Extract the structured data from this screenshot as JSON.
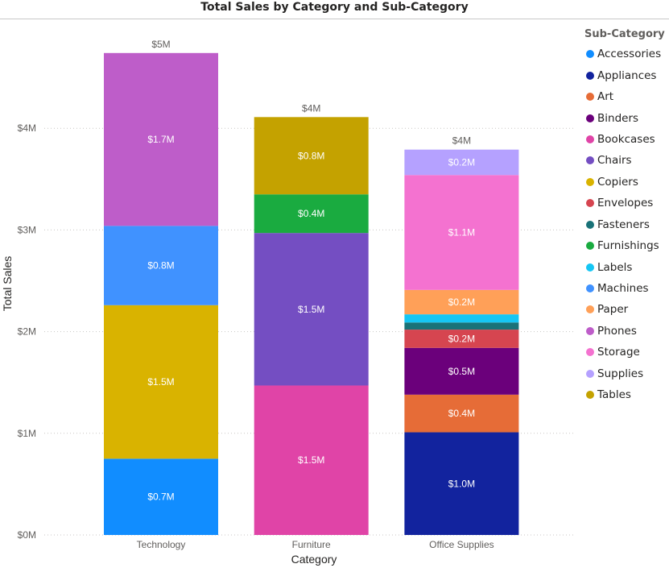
{
  "title": "Total Sales by Category and Sub-Category",
  "legend": {
    "title": "Sub-Category",
    "items": [
      {
        "label": "Accessories",
        "color": "#118DFF"
      },
      {
        "label": "Appliances",
        "color": "#12239E"
      },
      {
        "label": "Art",
        "color": "#E66C37"
      },
      {
        "label": "Binders",
        "color": "#6B007B"
      },
      {
        "label": "Bookcases",
        "color": "#E044A7"
      },
      {
        "label": "Chairs",
        "color": "#744EC2"
      },
      {
        "label": "Copiers",
        "color": "#D9B300"
      },
      {
        "label": "Envelopes",
        "color": "#D64550"
      },
      {
        "label": "Fasteners",
        "color": "#197278"
      },
      {
        "label": "Furnishings",
        "color": "#1AAB40"
      },
      {
        "label": "Labels",
        "color": "#15C6F4"
      },
      {
        "label": "Machines",
        "color": "#4092FF"
      },
      {
        "label": "Paper",
        "color": "#FFA058"
      },
      {
        "label": "Phones",
        "color": "#BE5DC9"
      },
      {
        "label": "Storage",
        "color": "#F472D0"
      },
      {
        "label": "Supplies",
        "color": "#B5A1FF"
      },
      {
        "label": "Tables",
        "color": "#C4A200"
      }
    ]
  },
  "chart_data": {
    "type": "bar",
    "stacked": true,
    "title": "Total Sales by Category and Sub-Category",
    "xlabel": "Category",
    "ylabel": "Total Sales",
    "ylim": [
      0,
      4800000
    ],
    "yticks": [
      0,
      1000000,
      2000000,
      3000000,
      4000000
    ],
    "ytick_labels": [
      "$0M",
      "$1M",
      "$2M",
      "$3M",
      "$4M"
    ],
    "grid": true,
    "legend_position": "right",
    "categories": [
      "Technology",
      "Furniture",
      "Office Supplies"
    ],
    "totals": [
      4740000,
      4110000,
      3790000
    ],
    "total_labels": [
      "$5M",
      "$4M",
      "$4M"
    ],
    "stacks": [
      {
        "category": "Technology",
        "segments": [
          {
            "sub": "Accessories",
            "value": 750000,
            "label": "$0.7M"
          },
          {
            "sub": "Copiers",
            "value": 1510000,
            "label": "$1.5M"
          },
          {
            "sub": "Machines",
            "value": 780000,
            "label": "$0.8M"
          },
          {
            "sub": "Phones",
            "value": 1700000,
            "label": "$1.7M"
          }
        ]
      },
      {
        "category": "Furniture",
        "segments": [
          {
            "sub": "Bookcases",
            "value": 1470000,
            "label": "$1.5M"
          },
          {
            "sub": "Chairs",
            "value": 1500000,
            "label": "$1.5M"
          },
          {
            "sub": "Furnishings",
            "value": 380000,
            "label": "$0.4M"
          },
          {
            "sub": "Tables",
            "value": 760000,
            "label": "$0.8M"
          }
        ]
      },
      {
        "category": "Office Supplies",
        "segments": [
          {
            "sub": "Appliances",
            "value": 1010000,
            "label": "$1.0M"
          },
          {
            "sub": "Art",
            "value": 370000,
            "label": "$0.4M"
          },
          {
            "sub": "Binders",
            "value": 460000,
            "label": "$0.5M"
          },
          {
            "sub": "Envelopes",
            "value": 180000,
            "label": "$0.2M"
          },
          {
            "sub": "Fasteners",
            "value": 70000,
            "label": ""
          },
          {
            "sub": "Labels",
            "value": 80000,
            "label": ""
          },
          {
            "sub": "Paper",
            "value": 240000,
            "label": "$0.2M"
          },
          {
            "sub": "Storage",
            "value": 1130000,
            "label": "$1.1M"
          },
          {
            "sub": "Supplies",
            "value": 250000,
            "label": "$0.2M"
          }
        ]
      }
    ]
  }
}
